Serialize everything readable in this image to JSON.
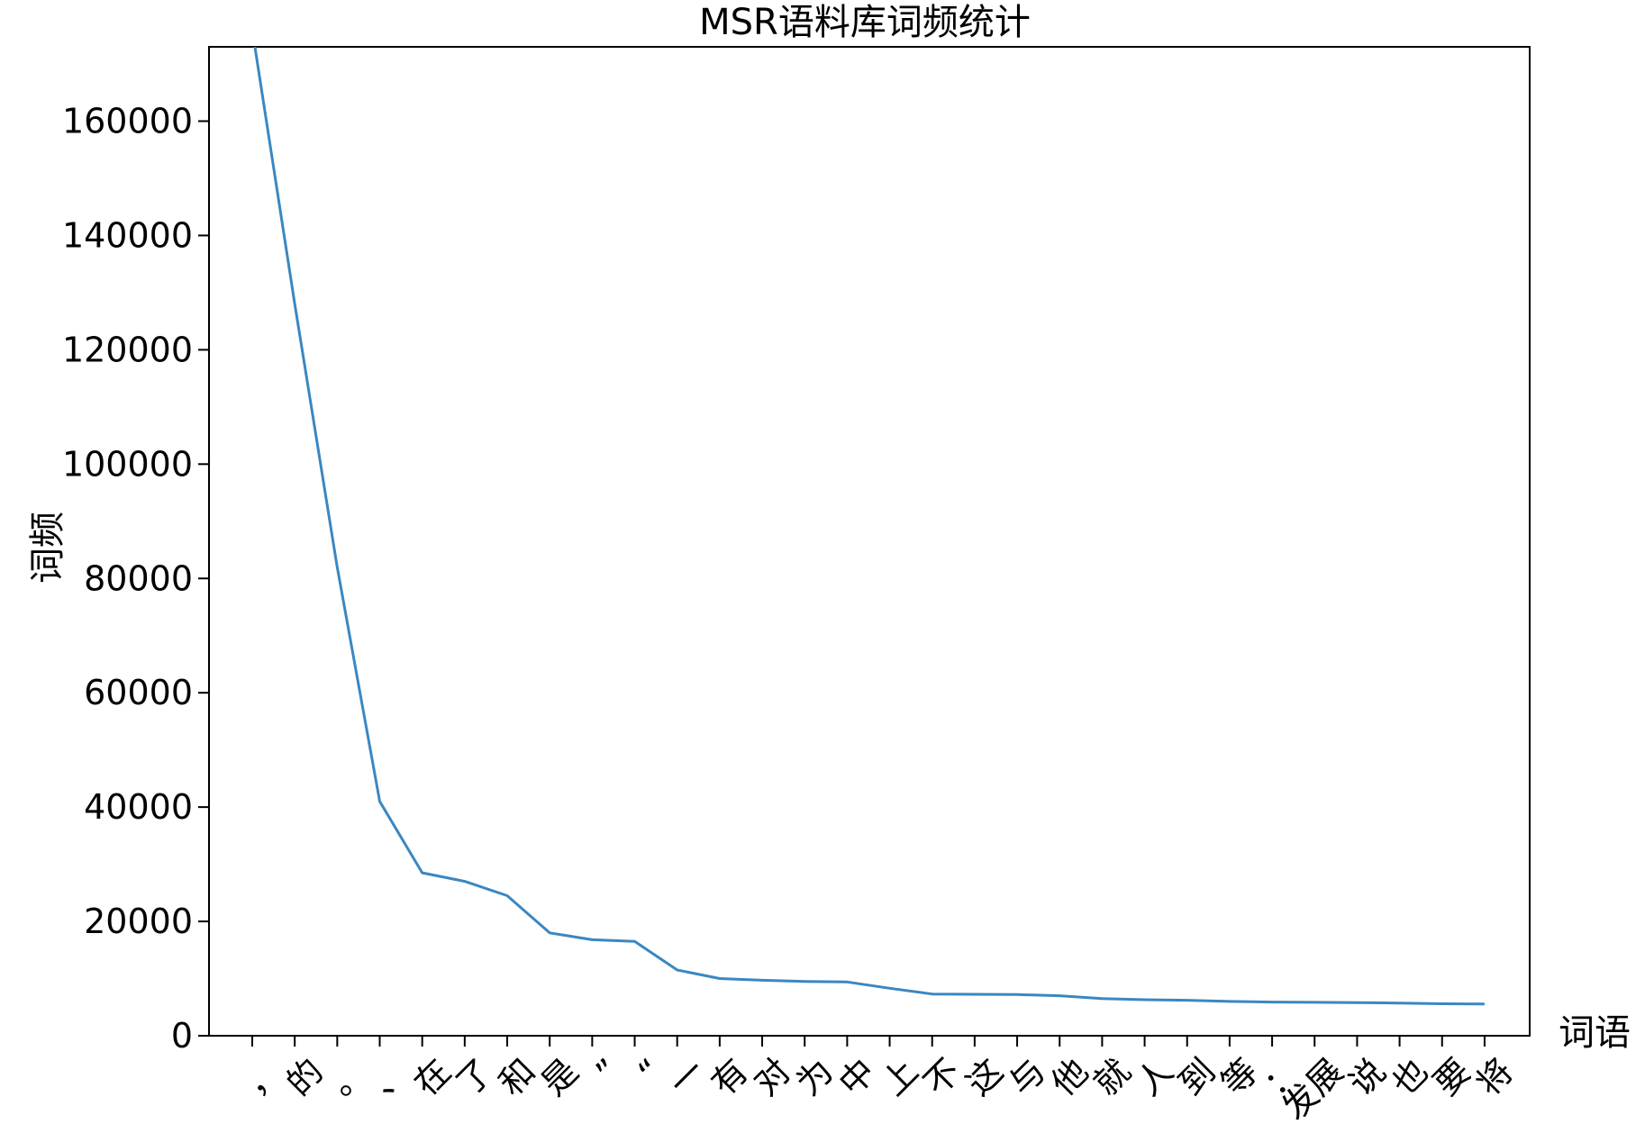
{
  "chart_data": {
    "type": "line",
    "title": "MSR语料库词频统计",
    "xlabel": "词语",
    "ylabel": "词频",
    "categories": [
      "，",
      "的",
      "。",
      "、",
      "在",
      "了",
      "和",
      "是",
      "”",
      "“",
      "一",
      "有",
      "对",
      "为",
      "中",
      "上",
      "不",
      "这",
      "与",
      "他",
      "就",
      "人",
      "到",
      "等",
      "：",
      "发展",
      "说",
      "也",
      "要",
      "将"
    ],
    "series": [
      {
        "color": "#3a87c2",
        "values": [
          176000,
          128000,
          82000,
          41000,
          28500,
          27000,
          24500,
          18000,
          16800,
          16500,
          11500,
          10000,
          9700,
          9500,
          9400,
          8300,
          7300,
          7250,
          7200,
          7000,
          6500,
          6300,
          6200,
          6000,
          5900,
          5850,
          5800,
          5700,
          5600,
          5550
        ]
      }
    ],
    "y_ticks": [
      "0",
      "20000",
      "40000",
      "60000",
      "80000",
      "100000",
      "120000",
      "140000",
      "160000"
    ],
    "ylim": [
      0,
      173000
    ],
    "grid": false
  }
}
